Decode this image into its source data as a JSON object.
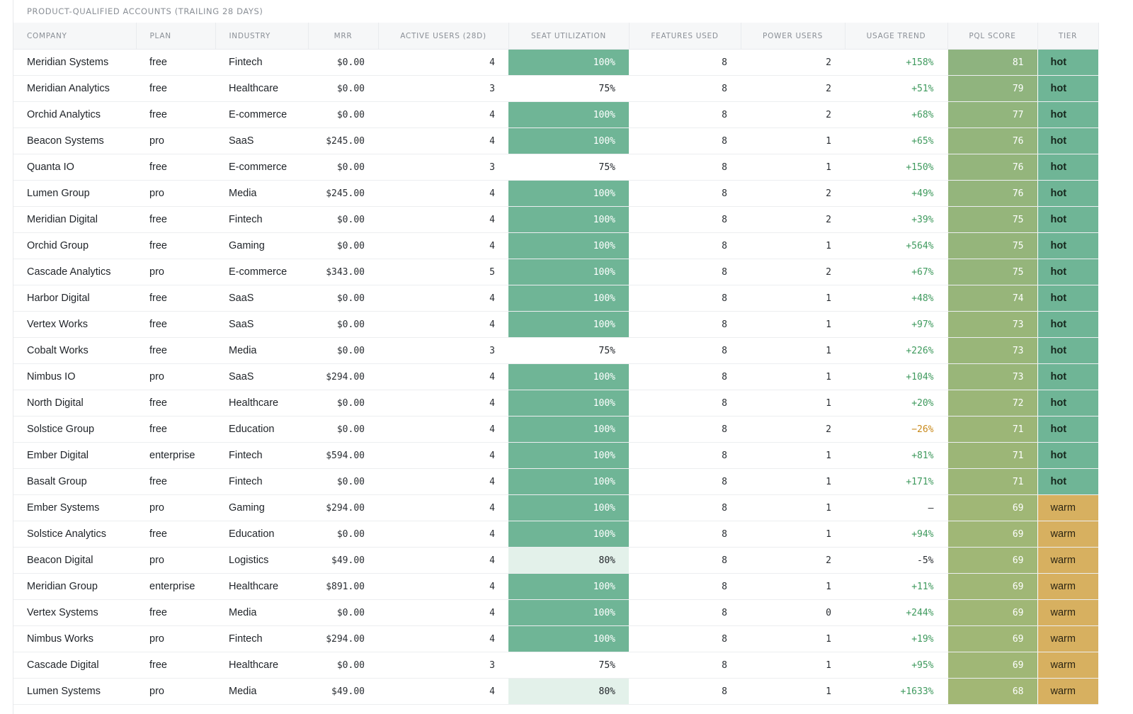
{
  "caption": "PRODUCT-QUALIFIED ACCOUNTS (TRAILING 28 DAYS)",
  "columns": {
    "company": "COMPANY",
    "plan": "PLAN",
    "industry": "INDUSTRY",
    "mrr": "MRR",
    "active_users": "ACTIVE USERS (28D)",
    "seat_utilization": "SEAT UTILIZATION",
    "features_used": "FEATURES USED",
    "power_users": "POWER USERS",
    "usage_trend": "USAGE TREND",
    "pql_score": "PQL SCORE",
    "tier": "TIER"
  },
  "colors": {
    "seat_full": "#6fb596",
    "seat_mid": "#e3f1ea",
    "tier_hot": "#6fb596",
    "tier_warm": "#d7b060",
    "trend_up": "#3f9a5e",
    "trend_down": "#c8891a"
  },
  "rows": [
    {
      "company": "Meridian Systems",
      "plan": "free",
      "industry": "Fintech",
      "mrr": "$0.00",
      "active": "4",
      "seat": "100%",
      "seat_level": "full",
      "features": "8",
      "power": "2",
      "trend": "+158%",
      "trend_dir": "up",
      "score": "81",
      "score_color": "#8eb37f",
      "tier": "hot"
    },
    {
      "company": "Meridian Analytics",
      "plan": "free",
      "industry": "Healthcare",
      "mrr": "$0.00",
      "active": "3",
      "seat": "75%",
      "seat_level": "none",
      "features": "8",
      "power": "2",
      "trend": "+51%",
      "trend_dir": "up",
      "score": "79",
      "score_color": "#90b47e",
      "tier": "hot"
    },
    {
      "company": "Orchid Analytics",
      "plan": "free",
      "industry": "E-commerce",
      "mrr": "$0.00",
      "active": "4",
      "seat": "100%",
      "seat_level": "full",
      "features": "8",
      "power": "2",
      "trend": "+68%",
      "trend_dir": "up",
      "score": "77",
      "score_color": "#92b57d",
      "tier": "hot"
    },
    {
      "company": "Beacon Systems",
      "plan": "pro",
      "industry": "SaaS",
      "mrr": "$245.00",
      "active": "4",
      "seat": "100%",
      "seat_level": "full",
      "features": "8",
      "power": "1",
      "trend": "+65%",
      "trend_dir": "up",
      "score": "76",
      "score_color": "#94b57c",
      "tier": "hot"
    },
    {
      "company": "Quanta IO",
      "plan": "free",
      "industry": "E-commerce",
      "mrr": "$0.00",
      "active": "3",
      "seat": "75%",
      "seat_level": "none",
      "features": "8",
      "power": "1",
      "trend": "+150%",
      "trend_dir": "up",
      "score": "76",
      "score_color": "#94b57c",
      "tier": "hot"
    },
    {
      "company": "Lumen Group",
      "plan": "pro",
      "industry": "Media",
      "mrr": "$245.00",
      "active": "4",
      "seat": "100%",
      "seat_level": "full",
      "features": "8",
      "power": "2",
      "trend": "+49%",
      "trend_dir": "up",
      "score": "76",
      "score_color": "#94b57c",
      "tier": "hot"
    },
    {
      "company": "Meridian Digital",
      "plan": "free",
      "industry": "Fintech",
      "mrr": "$0.00",
      "active": "4",
      "seat": "100%",
      "seat_level": "full",
      "features": "8",
      "power": "2",
      "trend": "+39%",
      "trend_dir": "up",
      "score": "75",
      "score_color": "#95b57b",
      "tier": "hot"
    },
    {
      "company": "Orchid Group",
      "plan": "free",
      "industry": "Gaming",
      "mrr": "$0.00",
      "active": "4",
      "seat": "100%",
      "seat_level": "full",
      "features": "8",
      "power": "1",
      "trend": "+564%",
      "trend_dir": "up",
      "score": "75",
      "score_color": "#95b57b",
      "tier": "hot"
    },
    {
      "company": "Cascade Analytics",
      "plan": "pro",
      "industry": "E-commerce",
      "mrr": "$343.00",
      "active": "5",
      "seat": "100%",
      "seat_level": "full",
      "features": "8",
      "power": "2",
      "trend": "+67%",
      "trend_dir": "up",
      "score": "75",
      "score_color": "#95b57b",
      "tier": "hot"
    },
    {
      "company": "Harbor Digital",
      "plan": "free",
      "industry": "SaaS",
      "mrr": "$0.00",
      "active": "4",
      "seat": "100%",
      "seat_level": "full",
      "features": "8",
      "power": "1",
      "trend": "+48%",
      "trend_dir": "up",
      "score": "74",
      "score_color": "#97b57a",
      "tier": "hot"
    },
    {
      "company": "Vertex Works",
      "plan": "free",
      "industry": "SaaS",
      "mrr": "$0.00",
      "active": "4",
      "seat": "100%",
      "seat_level": "full",
      "features": "8",
      "power": "1",
      "trend": "+97%",
      "trend_dir": "up",
      "score": "73",
      "score_color": "#99b679",
      "tier": "hot"
    },
    {
      "company": "Cobalt Works",
      "plan": "free",
      "industry": "Media",
      "mrr": "$0.00",
      "active": "3",
      "seat": "75%",
      "seat_level": "none",
      "features": "8",
      "power": "1",
      "trend": "+226%",
      "trend_dir": "up",
      "score": "73",
      "score_color": "#99b679",
      "tier": "hot"
    },
    {
      "company": "Nimbus IO",
      "plan": "pro",
      "industry": "SaaS",
      "mrr": "$294.00",
      "active": "4",
      "seat": "100%",
      "seat_level": "full",
      "features": "8",
      "power": "1",
      "trend": "+104%",
      "trend_dir": "up",
      "score": "73",
      "score_color": "#99b679",
      "tier": "hot"
    },
    {
      "company": "North Digital",
      "plan": "free",
      "industry": "Healthcare",
      "mrr": "$0.00",
      "active": "4",
      "seat": "100%",
      "seat_level": "full",
      "features": "8",
      "power": "1",
      "trend": "+20%",
      "trend_dir": "up",
      "score": "72",
      "score_color": "#9bb678",
      "tier": "hot"
    },
    {
      "company": "Solstice Group",
      "plan": "free",
      "industry": "Education",
      "mrr": "$0.00",
      "active": "4",
      "seat": "100%",
      "seat_level": "full",
      "features": "8",
      "power": "2",
      "trend": "−26%",
      "trend_dir": "down",
      "score": "71",
      "score_color": "#9cb677",
      "tier": "hot"
    },
    {
      "company": "Ember Digital",
      "plan": "enterprise",
      "industry": "Fintech",
      "mrr": "$594.00",
      "active": "4",
      "seat": "100%",
      "seat_level": "full",
      "features": "8",
      "power": "1",
      "trend": "+81%",
      "trend_dir": "up",
      "score": "71",
      "score_color": "#9cb677",
      "tier": "hot"
    },
    {
      "company": "Basalt Group",
      "plan": "free",
      "industry": "Fintech",
      "mrr": "$0.00",
      "active": "4",
      "seat": "100%",
      "seat_level": "full",
      "features": "8",
      "power": "1",
      "trend": "+171%",
      "trend_dir": "up",
      "score": "71",
      "score_color": "#9cb677",
      "tier": "hot"
    },
    {
      "company": "Ember Systems",
      "plan": "pro",
      "industry": "Gaming",
      "mrr": "$294.00",
      "active": "4",
      "seat": "100%",
      "seat_level": "full",
      "features": "8",
      "power": "1",
      "trend": "–",
      "trend_dir": "neutral",
      "score": "69",
      "score_color": "#a0b776",
      "tier": "warm"
    },
    {
      "company": "Solstice Analytics",
      "plan": "free",
      "industry": "Education",
      "mrr": "$0.00",
      "active": "4",
      "seat": "100%",
      "seat_level": "full",
      "features": "8",
      "power": "1",
      "trend": "+94%",
      "trend_dir": "up",
      "score": "69",
      "score_color": "#a0b776",
      "tier": "warm"
    },
    {
      "company": "Beacon Digital",
      "plan": "pro",
      "industry": "Logistics",
      "mrr": "$49.00",
      "active": "4",
      "seat": "80%",
      "seat_level": "mid",
      "features": "8",
      "power": "2",
      "trend": "-5%",
      "trend_dir": "neutral",
      "score": "69",
      "score_color": "#a0b776",
      "tier": "warm"
    },
    {
      "company": "Meridian Group",
      "plan": "enterprise",
      "industry": "Healthcare",
      "mrr": "$891.00",
      "active": "4",
      "seat": "100%",
      "seat_level": "full",
      "features": "8",
      "power": "1",
      "trend": "+11%",
      "trend_dir": "up",
      "score": "69",
      "score_color": "#a0b776",
      "tier": "warm"
    },
    {
      "company": "Vertex Systems",
      "plan": "free",
      "industry": "Media",
      "mrr": "$0.00",
      "active": "4",
      "seat": "100%",
      "seat_level": "full",
      "features": "8",
      "power": "0",
      "trend": "+244%",
      "trend_dir": "up",
      "score": "69",
      "score_color": "#a0b776",
      "tier": "warm"
    },
    {
      "company": "Nimbus Works",
      "plan": "pro",
      "industry": "Fintech",
      "mrr": "$294.00",
      "active": "4",
      "seat": "100%",
      "seat_level": "full",
      "features": "8",
      "power": "1",
      "trend": "+19%",
      "trend_dir": "up",
      "score": "69",
      "score_color": "#a0b776",
      "tier": "warm"
    },
    {
      "company": "Cascade Digital",
      "plan": "free",
      "industry": "Healthcare",
      "mrr": "$0.00",
      "active": "3",
      "seat": "75%",
      "seat_level": "none",
      "features": "8",
      "power": "1",
      "trend": "+95%",
      "trend_dir": "up",
      "score": "69",
      "score_color": "#a0b776",
      "tier": "warm"
    },
    {
      "company": "Lumen Systems",
      "plan": "pro",
      "industry": "Media",
      "mrr": "$49.00",
      "active": "4",
      "seat": "80%",
      "seat_level": "mid",
      "features": "8",
      "power": "1",
      "trend": "+1633%",
      "trend_dir": "up",
      "score": "68",
      "score_color": "#a2b775",
      "tier": "warm"
    }
  ]
}
